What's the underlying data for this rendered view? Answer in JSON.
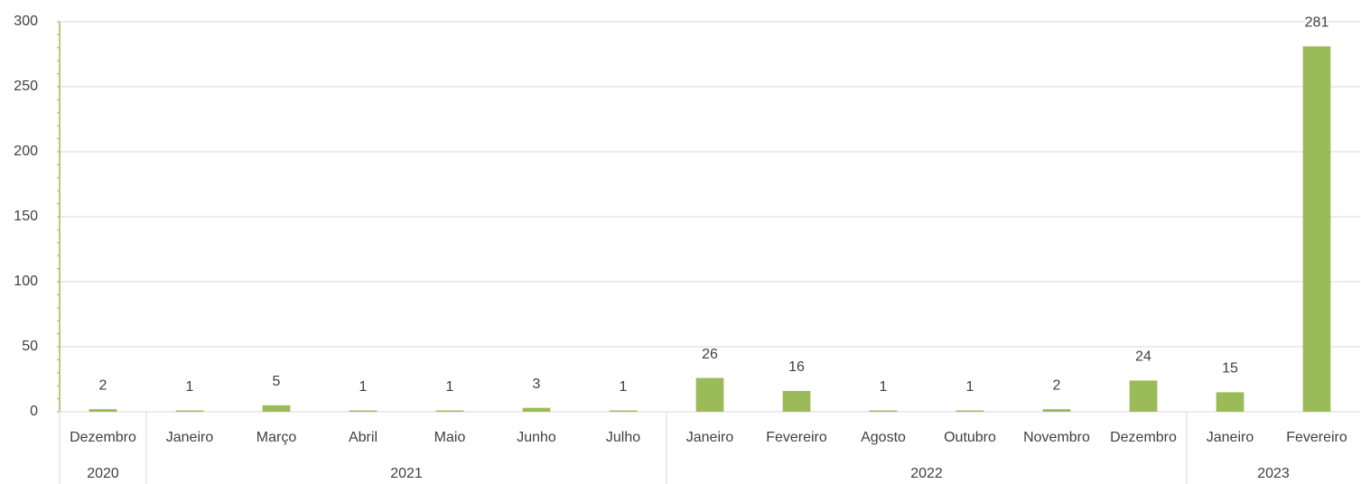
{
  "chart_data": {
    "type": "bar",
    "categories": [
      "Dezembro",
      "Janeiro",
      "Março",
      "Abril",
      "Maio",
      "Junho",
      "Julho",
      "Janeiro",
      "Fevereiro",
      "Agosto",
      "Outubro",
      "Novembro",
      "Dezembro",
      "Janeiro",
      "Fevereiro"
    ],
    "category_groups": [
      {
        "label": "2020",
        "size": 1
      },
      {
        "label": "2021",
        "size": 6
      },
      {
        "label": "2022",
        "size": 6
      },
      {
        "label": "2023",
        "size": 2
      }
    ],
    "values": [
      2,
      1,
      5,
      1,
      1,
      3,
      1,
      26,
      16,
      1,
      1,
      2,
      24,
      15,
      281
    ],
    "color": "#9bbb59",
    "ylim": [
      0,
      300
    ],
    "yticks": [
      0,
      50,
      100,
      150,
      200,
      250,
      300
    ],
    "grid": true
  }
}
